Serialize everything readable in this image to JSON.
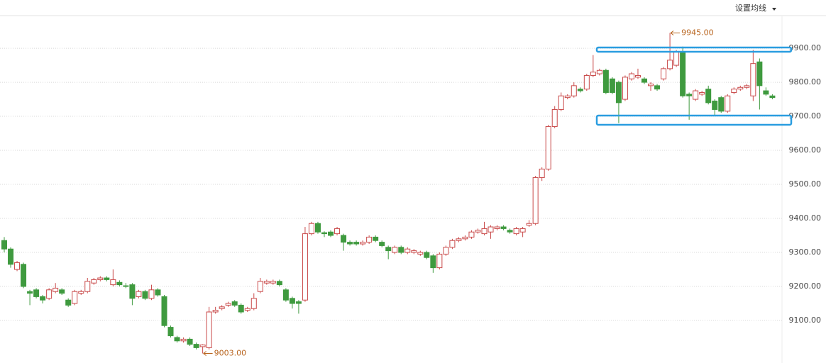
{
  "chart_data": {
    "type": "candlestick",
    "menu": "设置均线",
    "up_color": "#c94a4a",
    "down_color": "#3f9a3f",
    "ylim": [
      8975,
      9996
    ],
    "yticks": [
      {
        "value": 9100,
        "label": "9100.00"
      },
      {
        "value": 9200,
        "label": "9200.00"
      },
      {
        "value": 9300,
        "label": "9300.00"
      },
      {
        "value": 9400,
        "label": "9400.00"
      },
      {
        "value": 9500,
        "label": "9500.00"
      },
      {
        "value": 9600,
        "label": "9600.00"
      },
      {
        "value": 9700,
        "label": "9700.00"
      },
      {
        "value": 9800,
        "label": "9800.00"
      },
      {
        "value": 9900,
        "label": "9900.00"
      }
    ],
    "grid": true,
    "annotations": [
      {
        "value": 9945,
        "label": "9945.00"
      },
      {
        "value": 9003,
        "label": "9003.00"
      }
    ],
    "ohlc": [
      [
        9335,
        9345,
        9300,
        9310
      ],
      [
        9310,
        9315,
        9255,
        9265
      ],
      [
        9250,
        9275,
        9245,
        9270
      ],
      [
        9265,
        9270,
        9195,
        9200
      ],
      [
        9185,
        9190,
        9145,
        9180
      ],
      [
        9190,
        9195,
        9165,
        9170
      ],
      [
        9170,
        9175,
        9150,
        9160
      ],
      [
        9165,
        9195,
        9160,
        9190
      ],
      [
        9185,
        9210,
        9180,
        9195
      ],
      [
        9190,
        9195,
        9175,
        9180
      ],
      [
        9160,
        9165,
        9140,
        9145
      ],
      [
        9150,
        9190,
        9145,
        9185
      ],
      [
        9180,
        9190,
        9175,
        9185
      ],
      [
        9185,
        9225,
        9180,
        9215
      ],
      [
        9210,
        9225,
        9205,
        9220
      ],
      [
        9220,
        9230,
        9215,
        9225
      ],
      [
        9225,
        9230,
        9215,
        9220
      ],
      [
        9205,
        9250,
        9200,
        9220
      ],
      [
        9212,
        9218,
        9200,
        9205
      ],
      [
        9202,
        9210,
        9195,
        9200
      ],
      [
        9205,
        9210,
        9145,
        9165
      ],
      [
        9170,
        9190,
        9165,
        9185
      ],
      [
        9185,
        9190,
        9160,
        9165
      ],
      [
        9165,
        9205,
        9160,
        9190
      ],
      [
        9190,
        9195,
        9170,
        9175
      ],
      [
        9170,
        9175,
        9080,
        9085
      ],
      [
        9080,
        9085,
        9050,
        9055
      ],
      [
        9050,
        9055,
        9035,
        9040
      ],
      [
        9040,
        9050,
        9035,
        9045
      ],
      [
        9045,
        9050,
        9025,
        9030
      ],
      [
        9030,
        9035,
        9015,
        9020
      ],
      [
        9023,
        9030,
        9003,
        9028
      ],
      [
        9020,
        9140,
        9015,
        9125
      ],
      [
        9125,
        9140,
        9120,
        9130
      ],
      [
        9135,
        9145,
        9130,
        9140
      ],
      [
        9145,
        9155,
        9140,
        9150
      ],
      [
        9155,
        9160,
        9140,
        9145
      ],
      [
        9145,
        9150,
        9120,
        9125
      ],
      [
        9130,
        9140,
        9125,
        9135
      ],
      [
        9135,
        9180,
        9130,
        9165
      ],
      [
        9185,
        9225,
        9180,
        9215
      ],
      [
        9210,
        9220,
        9205,
        9215
      ],
      [
        9210,
        9220,
        9205,
        9215
      ],
      [
        9215,
        9220,
        9200,
        9205
      ],
      [
        9190,
        9195,
        9155,
        9160
      ],
      [
        9165,
        9170,
        9135,
        9150
      ],
      [
        9155,
        9160,
        9120,
        9150
      ],
      [
        9160,
        9375,
        9155,
        9355
      ],
      [
        9355,
        9390,
        9350,
        9385
      ],
      [
        9385,
        9390,
        9355,
        9360
      ],
      [
        9358,
        9362,
        9345,
        9355
      ],
      [
        9360,
        9365,
        9345,
        9350
      ],
      [
        9355,
        9375,
        9350,
        9370
      ],
      [
        9350,
        9355,
        9305,
        9330
      ],
      [
        9330,
        9335,
        9320,
        9325
      ],
      [
        9330,
        9335,
        9320,
        9325
      ],
      [
        9325,
        9335,
        9320,
        9330
      ],
      [
        9330,
        9350,
        9325,
        9345
      ],
      [
        9345,
        9350,
        9330,
        9335
      ],
      [
        9330,
        9335,
        9315,
        9320
      ],
      [
        9315,
        9320,
        9280,
        9305
      ],
      [
        9300,
        9320,
        9295,
        9315
      ],
      [
        9315,
        9320,
        9295,
        9300
      ],
      [
        9300,
        9315,
        9295,
        9310
      ],
      [
        9300,
        9310,
        9295,
        9305
      ],
      [
        9295,
        9305,
        9290,
        9300
      ],
      [
        9300,
        9305,
        9280,
        9285
      ],
      [
        9290,
        9295,
        9240,
        9255
      ],
      [
        9255,
        9300,
        9250,
        9295
      ],
      [
        9295,
        9320,
        9290,
        9315
      ],
      [
        9315,
        9340,
        9310,
        9335
      ],
      [
        9335,
        9345,
        9330,
        9340
      ],
      [
        9340,
        9350,
        9335,
        9345
      ],
      [
        9345,
        9365,
        9340,
        9360
      ],
      [
        9360,
        9370,
        9355,
        9365
      ],
      [
        9355,
        9390,
        9350,
        9370
      ],
      [
        9360,
        9380,
        9340,
        9375
      ],
      [
        9370,
        9380,
        9365,
        9375
      ],
      [
        9375,
        9380,
        9365,
        9370
      ],
      [
        9365,
        9370,
        9355,
        9360
      ],
      [
        9355,
        9375,
        9350,
        9370
      ],
      [
        9360,
        9375,
        9345,
        9370
      ],
      [
        9380,
        9395,
        9375,
        9385
      ],
      [
        9385,
        9525,
        9380,
        9520
      ],
      [
        9520,
        9550,
        9510,
        9545
      ],
      [
        9545,
        9675,
        9540,
        9670
      ],
      [
        9670,
        9730,
        9665,
        9720
      ],
      [
        9720,
        9770,
        9715,
        9760
      ],
      [
        9755,
        9765,
        9750,
        9760
      ],
      [
        9760,
        9800,
        9755,
        9790
      ],
      [
        9780,
        9785,
        9770,
        9775
      ],
      [
        9780,
        9825,
        9775,
        9820
      ],
      [
        9820,
        9880,
        9815,
        9830
      ],
      [
        9825,
        9840,
        9820,
        9835
      ],
      [
        9835,
        9840,
        9765,
        9770
      ],
      [
        9810,
        9815,
        9765,
        9770
      ],
      [
        9800,
        9805,
        9680,
        9740
      ],
      [
        9750,
        9820,
        9745,
        9815
      ],
      [
        9810,
        9830,
        9805,
        9825
      ],
      [
        9815,
        9840,
        9810,
        9820
      ],
      [
        9810,
        9815,
        9795,
        9800
      ],
      [
        9790,
        9800,
        9775,
        9795
      ],
      [
        9790,
        9795,
        9775,
        9780
      ],
      [
        9810,
        9845,
        9805,
        9840
      ],
      [
        9840,
        9945,
        9835,
        9865
      ],
      [
        9850,
        9895,
        9845,
        9890
      ],
      [
        9890,
        9905,
        9755,
        9760
      ],
      [
        9765,
        9770,
        9690,
        9760
      ],
      [
        9750,
        9780,
        9745,
        9775
      ],
      [
        9765,
        9775,
        9760,
        9770
      ],
      [
        9780,
        9790,
        9735,
        9740
      ],
      [
        9745,
        9750,
        9700,
        9720
      ],
      [
        9755,
        9760,
        9710,
        9715
      ],
      [
        9715,
        9765,
        9710,
        9760
      ],
      [
        9770,
        9785,
        9765,
        9780
      ],
      [
        9780,
        9790,
        9775,
        9785
      ],
      [
        9785,
        9795,
        9780,
        9790
      ],
      [
        9760,
        9895,
        9745,
        9855
      ],
      [
        9860,
        9870,
        9720,
        9790
      ],
      [
        9775,
        9785,
        9760,
        9765
      ],
      [
        9760,
        9765,
        9750,
        9755
      ]
    ]
  }
}
